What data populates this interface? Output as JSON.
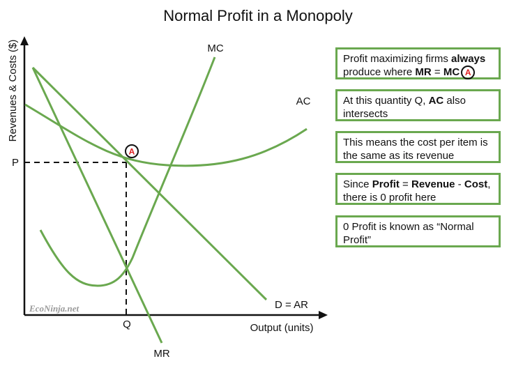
{
  "title": "Normal Profit in a Monopoly",
  "axes": {
    "ylabel": "Revenues & Costs ($)",
    "xlabel": "Output (units)",
    "p_label": "P",
    "q_label": "Q"
  },
  "curves": {
    "mc": "MC",
    "ac": "AC",
    "mr": "MR",
    "demand": "D = AR"
  },
  "point_label": "A",
  "watermark": "EcoNinja.net",
  "colors": {
    "curve": "#6aa84f",
    "marker": "#e02020",
    "ink": "#111111"
  },
  "notes": [
    {
      "parts": [
        "Profit maximizing firms ",
        "always",
        " produce where ",
        "MR",
        " = ",
        "MC"
      ],
      "badge": "A"
    },
    {
      "parts": [
        "At this quantity Q, ",
        "AC",
        " also intersects"
      ]
    },
    {
      "parts": [
        "This means the cost per item is the same as its revenue"
      ]
    },
    {
      "parts": [
        "Since ",
        "Profit",
        " = ",
        "Revenue",
        " - ",
        "Cost",
        ", there is 0 profit here"
      ]
    },
    {
      "parts": [
        "0 Profit is known as “Normal Profit”"
      ]
    }
  ]
}
